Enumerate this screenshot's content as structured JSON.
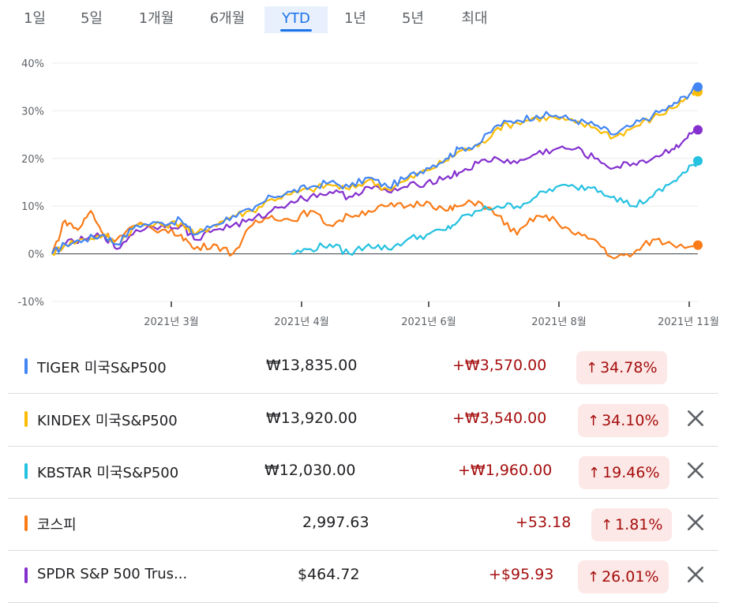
{
  "tabs": [
    {
      "label": "1일",
      "active": false
    },
    {
      "label": "5일",
      "active": false
    },
    {
      "label": "1개월",
      "active": false
    },
    {
      "label": "6개월",
      "active": false
    },
    {
      "label": "YTD",
      "active": true
    },
    {
      "label": "1년",
      "active": false
    },
    {
      "label": "5년",
      "active": false
    },
    {
      "label": "최대",
      "active": false
    }
  ],
  "chart_data": {
    "type": "line",
    "y_ticks": [
      "40%",
      "30%",
      "20%",
      "10%",
      "0%",
      "-10%"
    ],
    "y_values": [
      40,
      30,
      20,
      10,
      0,
      -10
    ],
    "ylim": [
      -10,
      40
    ],
    "x_ticks": [
      "2021년 3월",
      "2021년 4월",
      "2021년 6월",
      "2021년 8월",
      "2021년 11월"
    ],
    "grid": true,
    "baseline": 0,
    "series": [
      {
        "name": "TIGER 미국S&P500",
        "color": "#4285f4",
        "points": [
          [
            0,
            0
          ],
          [
            0.02,
            2
          ],
          [
            0.05,
            3
          ],
          [
            0.08,
            4
          ],
          [
            0.1,
            2
          ],
          [
            0.13,
            6
          ],
          [
            0.17,
            6.5
          ],
          [
            0.2,
            7
          ],
          [
            0.22,
            4
          ],
          [
            0.25,
            6
          ],
          [
            0.28,
            8
          ],
          [
            0.31,
            9
          ],
          [
            0.34,
            12
          ],
          [
            0.37,
            13
          ],
          [
            0.4,
            14
          ],
          [
            0.43,
            15
          ],
          [
            0.46,
            14
          ],
          [
            0.49,
            16
          ],
          [
            0.52,
            14
          ],
          [
            0.55,
            16
          ],
          [
            0.58,
            18
          ],
          [
            0.61,
            20
          ],
          [
            0.63,
            22
          ],
          [
            0.66,
            23
          ],
          [
            0.69,
            27
          ],
          [
            0.72,
            28
          ],
          [
            0.75,
            29
          ],
          [
            0.78,
            29
          ],
          [
            0.81,
            28
          ],
          [
            0.84,
            27
          ],
          [
            0.87,
            25
          ],
          [
            0.9,
            27
          ],
          [
            0.93,
            29
          ],
          [
            0.96,
            31
          ],
          [
            0.98,
            33
          ],
          [
            1,
            35
          ]
        ]
      },
      {
        "name": "KINDEX 미국S&P500",
        "color": "#fbbc04",
        "points": [
          [
            0,
            0
          ],
          [
            0.02,
            2
          ],
          [
            0.05,
            3
          ],
          [
            0.08,
            4
          ],
          [
            0.1,
            2
          ],
          [
            0.13,
            6
          ],
          [
            0.17,
            6
          ],
          [
            0.2,
            6.5
          ],
          [
            0.22,
            4
          ],
          [
            0.25,
            6
          ],
          [
            0.28,
            8
          ],
          [
            0.31,
            9
          ],
          [
            0.34,
            11.5
          ],
          [
            0.37,
            12.5
          ],
          [
            0.4,
            13.5
          ],
          [
            0.43,
            14.5
          ],
          [
            0.46,
            13.5
          ],
          [
            0.49,
            15.5
          ],
          [
            0.52,
            13.5
          ],
          [
            0.55,
            15.5
          ],
          [
            0.58,
            17.5
          ],
          [
            0.61,
            19.5
          ],
          [
            0.63,
            21.5
          ],
          [
            0.66,
            22.5
          ],
          [
            0.69,
            26.5
          ],
          [
            0.72,
            27.5
          ],
          [
            0.75,
            28.5
          ],
          [
            0.78,
            28.5
          ],
          [
            0.81,
            27.5
          ],
          [
            0.84,
            26.5
          ],
          [
            0.87,
            24.5
          ],
          [
            0.9,
            26.5
          ],
          [
            0.93,
            28.5
          ],
          [
            0.96,
            30.5
          ],
          [
            0.98,
            32.5
          ],
          [
            1,
            34
          ]
        ]
      },
      {
        "name": "KBSTAR 미국S&P500",
        "color": "#24c1e0",
        "points": [
          [
            0.37,
            0
          ],
          [
            0.4,
            1
          ],
          [
            0.43,
            2
          ],
          [
            0.46,
            0
          ],
          [
            0.49,
            2
          ],
          [
            0.52,
            1
          ],
          [
            0.55,
            3
          ],
          [
            0.58,
            4
          ],
          [
            0.61,
            5
          ],
          [
            0.63,
            7
          ],
          [
            0.66,
            9
          ],
          [
            0.69,
            10
          ],
          [
            0.72,
            10
          ],
          [
            0.75,
            12
          ],
          [
            0.78,
            14
          ],
          [
            0.81,
            14
          ],
          [
            0.84,
            14
          ],
          [
            0.87,
            12
          ],
          [
            0.9,
            10
          ],
          [
            0.93,
            12
          ],
          [
            0.96,
            15
          ],
          [
            0.98,
            17
          ],
          [
            1,
            19.5
          ]
        ]
      },
      {
        "name": "코스피",
        "color": "#fa7b17",
        "points": [
          [
            0,
            0
          ],
          [
            0.02,
            7
          ],
          [
            0.04,
            5
          ],
          [
            0.06,
            9
          ],
          [
            0.08,
            4
          ],
          [
            0.1,
            3
          ],
          [
            0.13,
            6
          ],
          [
            0.17,
            5
          ],
          [
            0.2,
            4
          ],
          [
            0.22,
            1
          ],
          [
            0.25,
            2
          ],
          [
            0.28,
            0
          ],
          [
            0.31,
            6
          ],
          [
            0.34,
            8
          ],
          [
            0.37,
            7
          ],
          [
            0.4,
            9
          ],
          [
            0.43,
            6
          ],
          [
            0.46,
            8
          ],
          [
            0.49,
            9
          ],
          [
            0.52,
            10
          ],
          [
            0.55,
            10
          ],
          [
            0.58,
            11
          ],
          [
            0.61,
            9
          ],
          [
            0.63,
            10
          ],
          [
            0.66,
            11
          ],
          [
            0.69,
            8
          ],
          [
            0.72,
            4
          ],
          [
            0.75,
            8
          ],
          [
            0.78,
            7
          ],
          [
            0.81,
            4
          ],
          [
            0.84,
            3
          ],
          [
            0.87,
            -1
          ],
          [
            0.9,
            0
          ],
          [
            0.93,
            3
          ],
          [
            0.96,
            2
          ],
          [
            1,
            1.81
          ]
        ]
      },
      {
        "name": "SPDR S&P 500 Trus...",
        "color": "#8430ce",
        "points": [
          [
            0,
            0
          ],
          [
            0.02,
            2
          ],
          [
            0.05,
            3
          ],
          [
            0.08,
            4
          ],
          [
            0.1,
            1
          ],
          [
            0.13,
            5
          ],
          [
            0.17,
            6
          ],
          [
            0.2,
            6
          ],
          [
            0.22,
            3
          ],
          [
            0.25,
            5
          ],
          [
            0.28,
            6
          ],
          [
            0.31,
            7
          ],
          [
            0.34,
            9
          ],
          [
            0.37,
            11
          ],
          [
            0.4,
            12
          ],
          [
            0.43,
            13
          ],
          [
            0.46,
            12
          ],
          [
            0.49,
            14
          ],
          [
            0.52,
            13
          ],
          [
            0.55,
            14
          ],
          [
            0.58,
            15
          ],
          [
            0.61,
            16
          ],
          [
            0.63,
            17
          ],
          [
            0.66,
            19
          ],
          [
            0.69,
            20
          ],
          [
            0.72,
            19
          ],
          [
            0.75,
            21
          ],
          [
            0.78,
            22
          ],
          [
            0.81,
            22
          ],
          [
            0.84,
            20
          ],
          [
            0.87,
            18
          ],
          [
            0.9,
            19
          ],
          [
            0.93,
            20
          ],
          [
            0.96,
            22
          ],
          [
            0.98,
            24
          ],
          [
            1,
            26
          ]
        ]
      }
    ]
  },
  "rows": [
    {
      "name": "TIGER 미국S&P500",
      "price": "₩13,835.00",
      "change": "+₩3,570.00",
      "pct": "34.78%",
      "color": "#4285f4",
      "removable": false
    },
    {
      "name": "KINDEX 미국S&P500",
      "price": "₩13,920.00",
      "change": "+₩3,540.00",
      "pct": "34.10%",
      "color": "#fbbc04",
      "removable": true
    },
    {
      "name": "KBSTAR 미국S&P500",
      "price": "₩12,030.00",
      "change": "+₩1,960.00",
      "pct": "19.46%",
      "color": "#24c1e0",
      "removable": true
    },
    {
      "name": "코스피",
      "price": "2,997.63",
      "change": "+53.18",
      "pct": "1.81%",
      "color": "#fa7b17",
      "removable": true
    },
    {
      "name": "SPDR S&P 500 Trus...",
      "price": "$464.72",
      "change": "+$95.93",
      "pct": "26.01%",
      "color": "#8430ce",
      "removable": true
    }
  ]
}
